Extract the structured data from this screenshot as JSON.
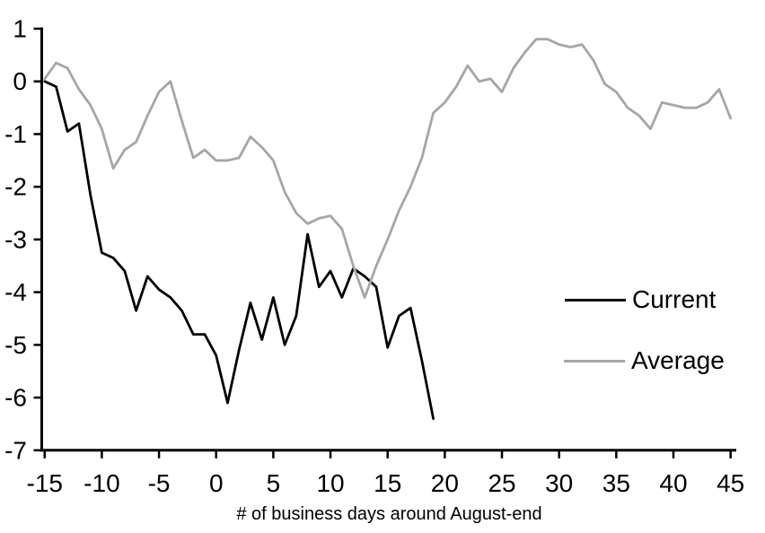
{
  "chart_data": {
    "type": "line",
    "title": "",
    "xlabel": "# of business days around August-end",
    "ylabel": "",
    "xlim": [
      -15,
      45
    ],
    "ylim": [
      -7,
      1
    ],
    "xticks": [
      -15,
      -10,
      -5,
      0,
      5,
      10,
      15,
      20,
      25,
      30,
      35,
      40,
      45
    ],
    "yticks": [
      1,
      0,
      -1,
      -2,
      -3,
      -4,
      -5,
      -6,
      -7
    ],
    "grid": false,
    "axis_color": "#000000",
    "legend": {
      "position": "middle-right",
      "entries": [
        "Current",
        "Average"
      ]
    },
    "series": [
      {
        "name": "Current",
        "color": "#000000",
        "x": [
          -15,
          -14,
          -13,
          -12,
          -11,
          -10,
          -9,
          -8,
          -7,
          -6,
          -5,
          -4,
          -3,
          -2,
          -1,
          0,
          1,
          2,
          3,
          4,
          5,
          6,
          7,
          8,
          9,
          10,
          11,
          12,
          13,
          14,
          15,
          16,
          17,
          18,
          19
        ],
        "values": [
          0,
          -0.1,
          -0.95,
          -0.8,
          -2.15,
          -3.25,
          -3.35,
          -3.6,
          -4.35,
          -3.7,
          -3.95,
          -4.1,
          -4.35,
          -4.8,
          -4.8,
          -5.2,
          -6.1,
          -5.1,
          -4.2,
          -4.9,
          -4.1,
          -5.0,
          -4.45,
          -2.9,
          -3.9,
          -3.6,
          -4.1,
          -3.55,
          -3.7,
          -3.9,
          -5.05,
          -4.45,
          -4.3,
          -5.3,
          -6.4
        ]
      },
      {
        "name": "Average",
        "color": "#A6A6A6",
        "x": [
          -15,
          -14,
          -13,
          -12,
          -11,
          -10,
          -9,
          -8,
          -7,
          -6,
          -5,
          -4,
          -3,
          -2,
          -1,
          0,
          1,
          2,
          3,
          4,
          5,
          6,
          7,
          8,
          9,
          10,
          11,
          12,
          13,
          14,
          15,
          16,
          17,
          18,
          19,
          20,
          21,
          22,
          23,
          24,
          25,
          26,
          27,
          28,
          29,
          30,
          31,
          32,
          33,
          34,
          35,
          36,
          37,
          38,
          39,
          40,
          41,
          42,
          43,
          44,
          45
        ],
        "values": [
          0.05,
          0.35,
          0.25,
          -0.15,
          -0.45,
          -0.9,
          -1.65,
          -1.3,
          -1.15,
          -0.65,
          -0.2,
          0,
          -0.75,
          -1.45,
          -1.3,
          -1.5,
          -1.5,
          -1.45,
          -1.05,
          -1.25,
          -1.5,
          -2.1,
          -2.5,
          -2.7,
          -2.6,
          -2.55,
          -2.8,
          -3.5,
          -4.1,
          -3.5,
          -3.0,
          -2.45,
          -2.0,
          -1.45,
          -0.6,
          -0.4,
          -0.1,
          0.3,
          0,
          0.05,
          -0.2,
          0.25,
          0.55,
          0.8,
          0.8,
          0.7,
          0.65,
          0.7,
          0.4,
          -0.05,
          -0.2,
          -0.5,
          -0.65,
          -0.9,
          -0.4,
          -0.45,
          -0.5,
          -0.5,
          -0.4,
          -0.15,
          -0.7
        ]
      }
    ]
  }
}
